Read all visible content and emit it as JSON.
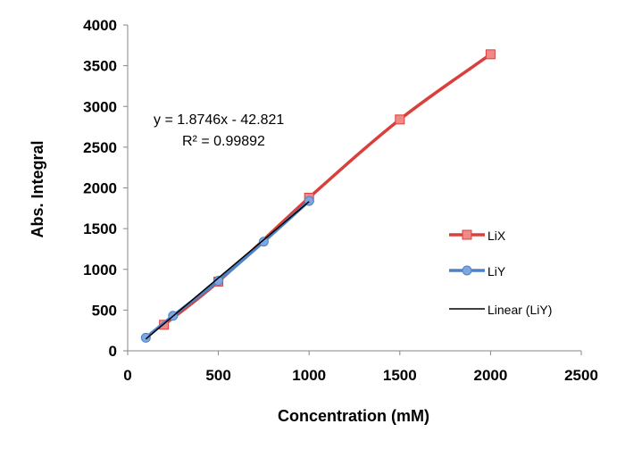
{
  "chart_data": {
    "type": "line",
    "title": "",
    "xlabel": "Concentration (mM)",
    "ylabel": "Abs. Integral",
    "xlim": [
      0,
      2500
    ],
    "ylim": [
      0,
      4000
    ],
    "x_ticks": [
      0,
      500,
      1000,
      1500,
      2000,
      2500
    ],
    "y_ticks": [
      0,
      500,
      1000,
      1500,
      2000,
      2500,
      3000,
      3500,
      4000
    ],
    "grid": false,
    "legend_position": "right",
    "series": [
      {
        "name": "LiX",
        "color": "#d9403c",
        "marker_fill": "#f08a87",
        "marker": "square",
        "smooth": true,
        "x": [
          200,
          500,
          1000,
          1500,
          2000
        ],
        "y": [
          320,
          850,
          1880,
          2840,
          3640
        ]
      },
      {
        "name": "LiY",
        "color": "#4f81c7",
        "marker_fill": "#7fa6de",
        "marker": "circle",
        "smooth": true,
        "x": [
          100,
          250,
          500,
          750,
          1000
        ],
        "y": [
          160,
          430,
          860,
          1340,
          1840
        ]
      }
    ],
    "trendline": {
      "name": "Linear (LiY)",
      "color": "#000000",
      "slope": 1.8746,
      "intercept": -42.821,
      "x_range": [
        100,
        1000
      ],
      "equation": "y = 1.8746x - 42.821",
      "r_squared": "R² = 0.99892"
    }
  }
}
